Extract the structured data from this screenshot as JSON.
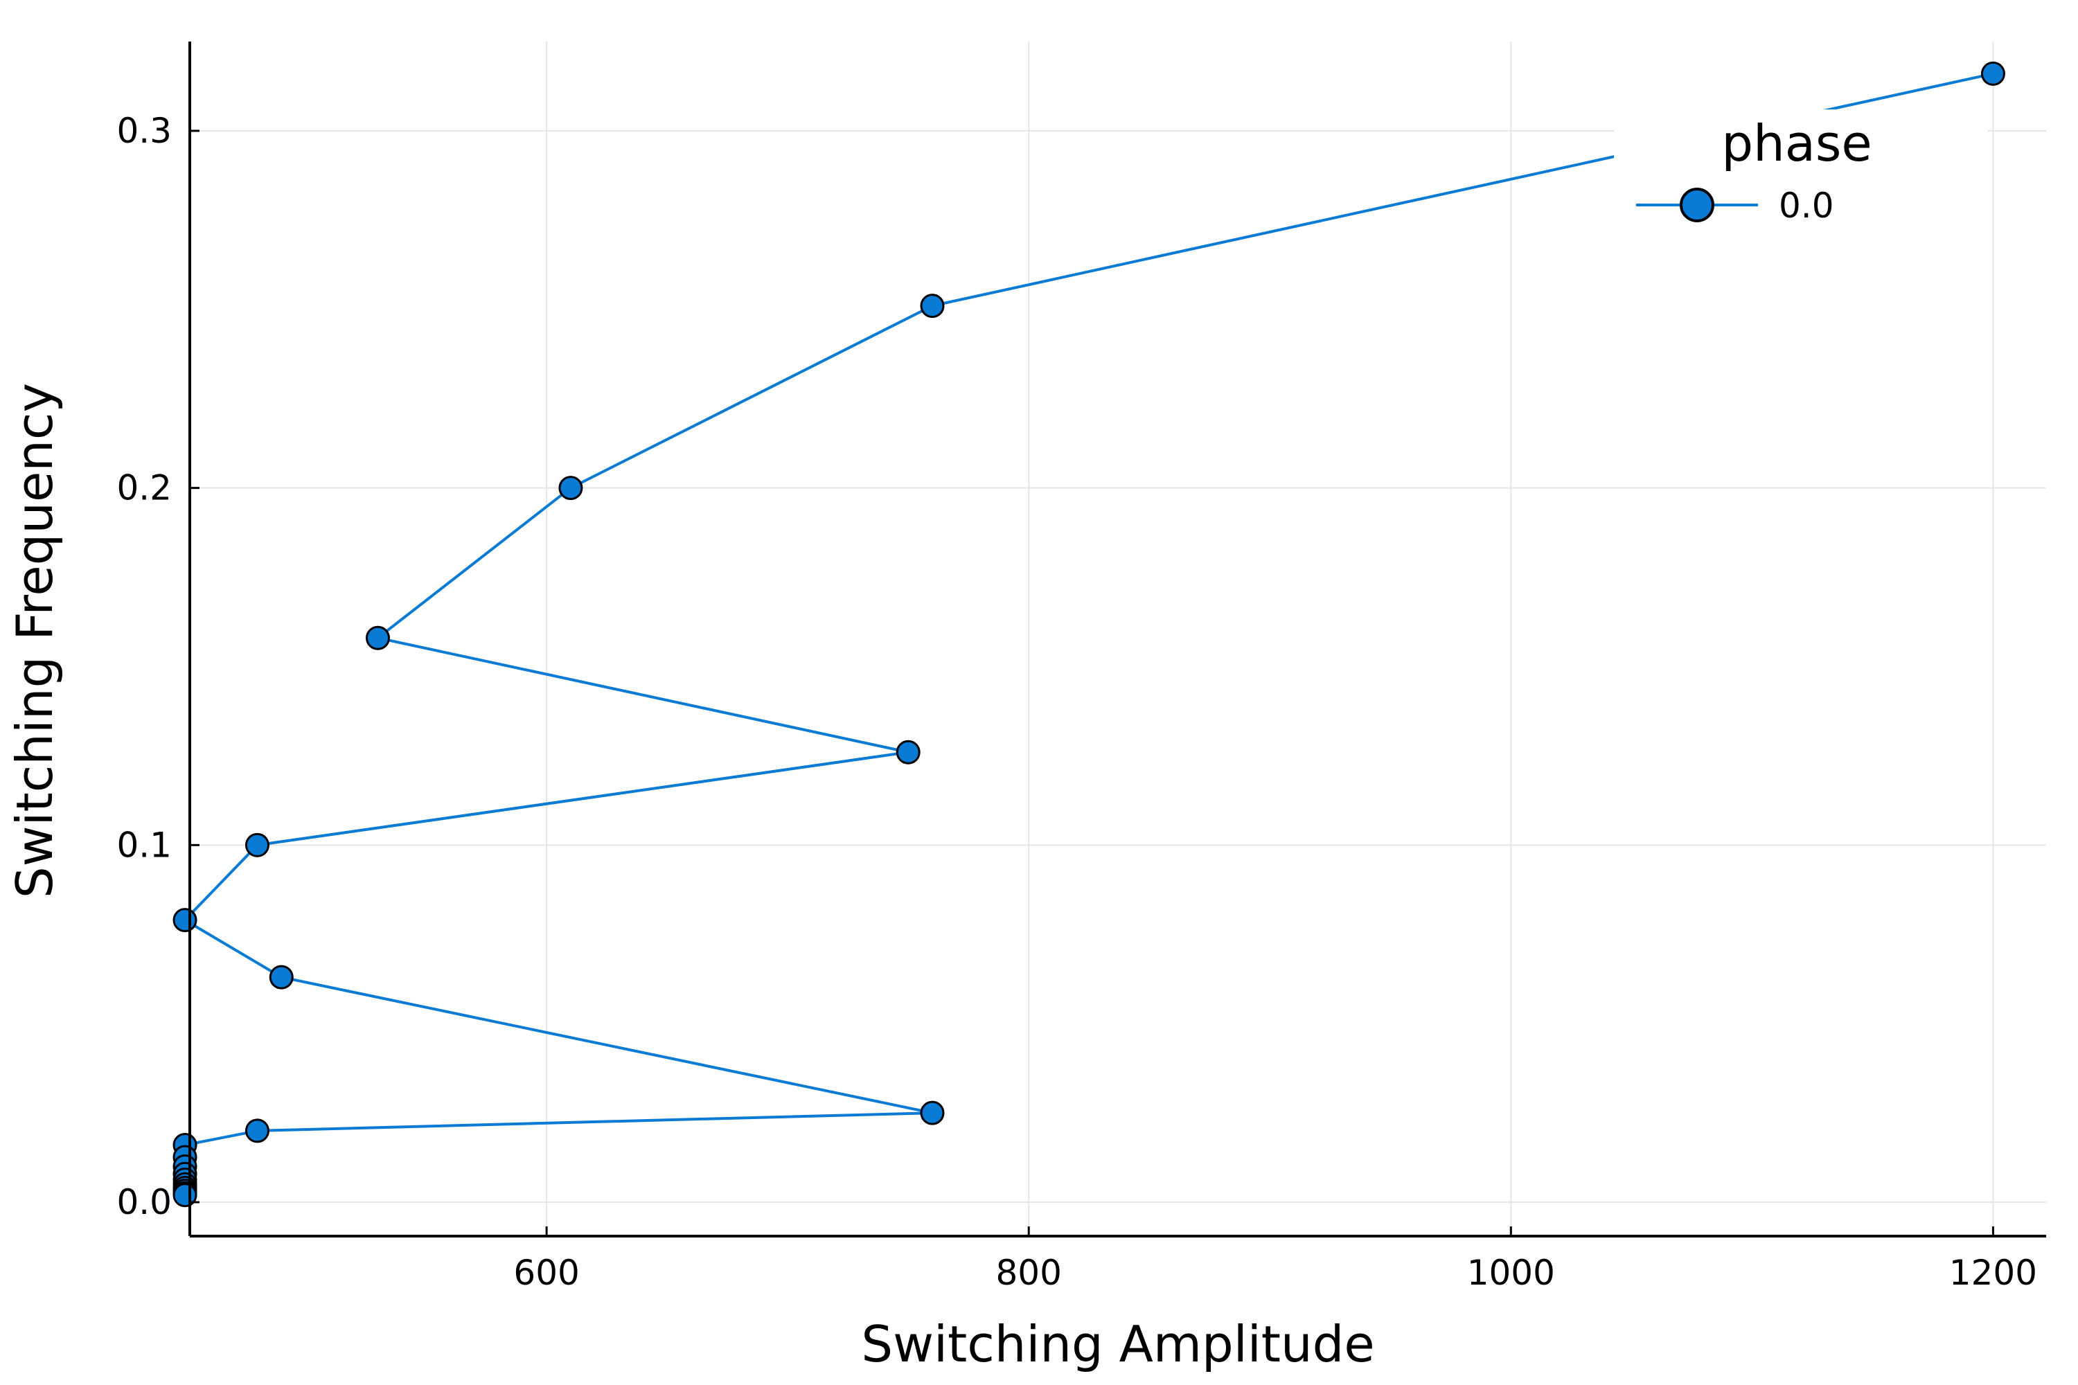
{
  "chart_data": {
    "type": "line",
    "title": "",
    "xlabel": "Switching Amplitude",
    "ylabel": "Switching Frequency",
    "xlim": [
      452,
      1222
    ],
    "ylim": [
      -0.0095,
      0.325
    ],
    "xticks": [
      600,
      800,
      1000,
      1200
    ],
    "xtick_labels": [
      "600",
      "800",
      "1000",
      "1200"
    ],
    "yticks": [
      0.0,
      0.1,
      0.2,
      0.3
    ],
    "ytick_labels": [
      "0.0",
      "0.1",
      "0.2",
      "0.3"
    ],
    "grid": true,
    "legend": {
      "title": "phase",
      "position": "top-right"
    },
    "series": [
      {
        "name": "0.0",
        "color": "#0a7bd4",
        "marker": "circle",
        "x": [
          1200,
          760,
          610,
          530,
          750,
          480,
          450,
          490,
          760,
          480,
          450,
          450,
          450,
          450,
          450,
          450,
          450,
          450,
          450,
          450
        ],
        "y": [
          0.316,
          0.251,
          0.2,
          0.158,
          0.126,
          0.1,
          0.079,
          0.063,
          0.025,
          0.02,
          0.016,
          0.0126,
          0.01,
          0.0079,
          0.0063,
          0.005,
          0.004,
          0.0032,
          0.0025,
          0.002
        ]
      }
    ]
  }
}
